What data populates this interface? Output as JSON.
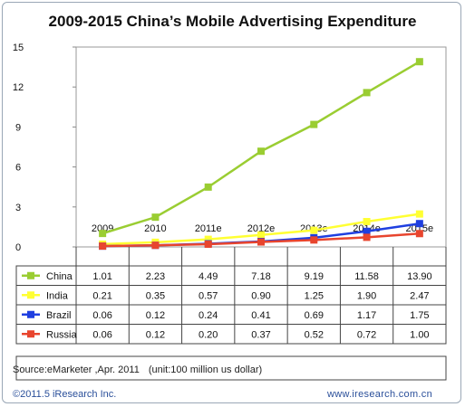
{
  "chart_data": {
    "type": "line",
    "title": "2009-2015 China’s Mobile Advertising Expenditure",
    "categories": [
      "2009",
      "2010",
      "2011e",
      "2012e",
      "2013e",
      "2014e",
      "2015e"
    ],
    "y_ticks": [
      "0",
      "3",
      "6",
      "9",
      "12",
      "15"
    ],
    "ylim": [
      0,
      15
    ],
    "grid": false,
    "legend": "table-left",
    "series": [
      {
        "name": "China",
        "color": "#9acd32",
        "values": [
          1.01,
          2.23,
          4.49,
          7.18,
          9.19,
          11.58,
          13.9
        ],
        "labels": [
          "1.01",
          "2.23",
          "4.49",
          "7.18",
          "9.19",
          "11.58",
          "13.90"
        ]
      },
      {
        "name": "India",
        "color": "#ffff33",
        "values": [
          0.21,
          0.35,
          0.57,
          0.9,
          1.25,
          1.9,
          2.47
        ],
        "labels": [
          "0.21",
          "0.35",
          "0.57",
          "0.90",
          "1.25",
          "1.90",
          "2.47"
        ]
      },
      {
        "name": "Brazil",
        "color": "#1f3fe0",
        "values": [
          0.06,
          0.12,
          0.24,
          0.41,
          0.69,
          1.17,
          1.75
        ],
        "labels": [
          "0.06",
          "0.12",
          "0.24",
          "0.41",
          "0.69",
          "1.17",
          "1.75"
        ]
      },
      {
        "name": "Russia",
        "color": "#e8452e",
        "values": [
          0.06,
          0.12,
          0.2,
          0.37,
          0.52,
          0.72,
          1.0
        ],
        "labels": [
          "0.06",
          "0.12",
          "0.20",
          "0.37",
          "0.52",
          "0.72",
          "1.00"
        ]
      }
    ]
  },
  "source": "Source:eMarketer ,Apr. 2011",
  "unit": "(unit:100 million us dollar)",
  "footer_left": "©2011.5 iResearch Inc.",
  "footer_right": "www.iresearch.com.cn"
}
